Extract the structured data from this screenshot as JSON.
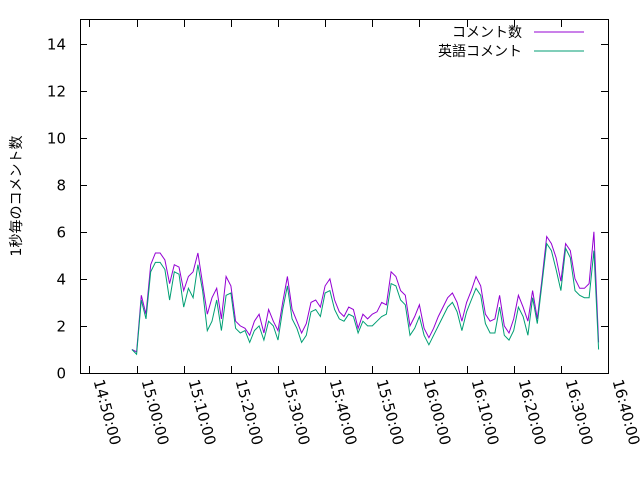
{
  "chart_data": {
    "type": "line",
    "title": "",
    "xlabel": "",
    "ylabel": "1秒毎のコメント数",
    "xlim": [
      "14:48:00",
      "16:40:00"
    ],
    "ylim": [
      0,
      15
    ],
    "grid": false,
    "legend_position": "top-right",
    "x_tick_labels": [
      "14:50:00",
      "15:00:00",
      "15:10:00",
      "15:20:00",
      "15:30:00",
      "15:40:00",
      "15:50:00",
      "16:00:00",
      "16:10:00",
      "16:20:00",
      "16:30:00",
      "16:40:00"
    ],
    "y_ticks": [
      0,
      2,
      4,
      6,
      8,
      10,
      12,
      14
    ],
    "series": [
      {
        "name": "コメント数",
        "color": "#9400d3",
        "points": [
          [
            "14:59:00",
            1.0
          ],
          [
            "15:00:00",
            0.9
          ],
          [
            "15:01:00",
            3.3
          ],
          [
            "15:02:00",
            2.5
          ],
          [
            "15:03:00",
            4.6
          ],
          [
            "15:04:00",
            5.1
          ],
          [
            "15:05:00",
            5.1
          ],
          [
            "15:06:00",
            4.8
          ],
          [
            "15:07:00",
            3.8
          ],
          [
            "15:08:00",
            4.6
          ],
          [
            "15:09:00",
            4.5
          ],
          [
            "15:10:00",
            3.5
          ],
          [
            "15:11:00",
            4.1
          ],
          [
            "15:12:00",
            4.3
          ],
          [
            "15:13:00",
            5.1
          ],
          [
            "15:14:00",
            3.8
          ],
          [
            "15:15:00",
            2.5
          ],
          [
            "15:16:00",
            3.2
          ],
          [
            "15:17:00",
            3.6
          ],
          [
            "15:18:00",
            2.3
          ],
          [
            "15:19:00",
            4.1
          ],
          [
            "15:20:00",
            3.7
          ],
          [
            "15:21:00",
            2.2
          ],
          [
            "15:22:00",
            2.0
          ],
          [
            "15:23:00",
            1.9
          ],
          [
            "15:24:00",
            1.6
          ],
          [
            "15:25:00",
            2.2
          ],
          [
            "15:26:00",
            2.5
          ],
          [
            "15:27:00",
            1.7
          ],
          [
            "15:28:00",
            2.7
          ],
          [
            "15:29:00",
            2.2
          ],
          [
            "15:30:00",
            1.8
          ],
          [
            "15:31:00",
            3.0
          ],
          [
            "15:32:00",
            4.1
          ],
          [
            "15:33:00",
            2.7
          ],
          [
            "15:34:00",
            2.2
          ],
          [
            "15:35:00",
            1.7
          ],
          [
            "15:36:00",
            2.1
          ],
          [
            "15:37:00",
            3.0
          ],
          [
            "15:38:00",
            3.1
          ],
          [
            "15:39:00",
            2.8
          ],
          [
            "15:40:00",
            3.7
          ],
          [
            "15:41:00",
            4.0
          ],
          [
            "15:42:00",
            3.1
          ],
          [
            "15:43:00",
            2.6
          ],
          [
            "15:44:00",
            2.4
          ],
          [
            "15:45:00",
            2.8
          ],
          [
            "15:46:00",
            2.7
          ],
          [
            "15:47:00",
            1.9
          ],
          [
            "15:48:00",
            2.5
          ],
          [
            "15:49:00",
            2.3
          ],
          [
            "15:50:00",
            2.5
          ],
          [
            "15:51:00",
            2.6
          ],
          [
            "15:52:00",
            3.0
          ],
          [
            "15:53:00",
            2.9
          ],
          [
            "15:54:00",
            4.3
          ],
          [
            "15:55:00",
            4.1
          ],
          [
            "15:56:00",
            3.5
          ],
          [
            "15:57:00",
            3.3
          ],
          [
            "15:58:00",
            2.0
          ],
          [
            "15:59:00",
            2.4
          ],
          [
            "16:00:00",
            2.9
          ],
          [
            "16:01:00",
            1.9
          ],
          [
            "16:02:00",
            1.5
          ],
          [
            "16:03:00",
            1.9
          ],
          [
            "16:04:00",
            2.4
          ],
          [
            "16:05:00",
            2.8
          ],
          [
            "16:06:00",
            3.2
          ],
          [
            "16:07:00",
            3.4
          ],
          [
            "16:08:00",
            3.0
          ],
          [
            "16:09:00",
            2.2
          ],
          [
            "16:10:00",
            3.0
          ],
          [
            "16:11:00",
            3.5
          ],
          [
            "16:12:00",
            4.1
          ],
          [
            "16:13:00",
            3.7
          ],
          [
            "16:14:00",
            2.5
          ],
          [
            "16:15:00",
            2.2
          ],
          [
            "16:16:00",
            2.3
          ],
          [
            "16:17:00",
            3.3
          ],
          [
            "16:18:00",
            2.0
          ],
          [
            "16:19:00",
            1.7
          ],
          [
            "16:20:00",
            2.3
          ],
          [
            "16:21:00",
            3.3
          ],
          [
            "16:22:00",
            2.8
          ],
          [
            "16:23:00",
            2.2
          ],
          [
            "16:24:00",
            3.5
          ],
          [
            "16:25:00",
            2.3
          ],
          [
            "16:26:00",
            4.0
          ],
          [
            "16:27:00",
            5.8
          ],
          [
            "16:28:00",
            5.5
          ],
          [
            "16:29:00",
            4.9
          ],
          [
            "16:30:00",
            3.9
          ],
          [
            "16:31:00",
            5.5
          ],
          [
            "16:32:00",
            5.2
          ],
          [
            "16:33:00",
            4.0
          ],
          [
            "16:34:00",
            3.6
          ],
          [
            "16:35:00",
            3.6
          ],
          [
            "16:36:00",
            3.8
          ],
          [
            "16:37:00",
            6.0
          ],
          [
            "16:38:00",
            1.3
          ]
        ]
      },
      {
        "name": "英語コメント",
        "color": "#009e73",
        "points": [
          [
            "14:59:00",
            1.0
          ],
          [
            "15:00:00",
            0.8
          ],
          [
            "15:01:00",
            3.1
          ],
          [
            "15:02:00",
            2.3
          ],
          [
            "15:03:00",
            4.3
          ],
          [
            "15:04:00",
            4.7
          ],
          [
            "15:05:00",
            4.7
          ],
          [
            "15:06:00",
            4.4
          ],
          [
            "15:07:00",
            3.1
          ],
          [
            "15:08:00",
            4.3
          ],
          [
            "15:09:00",
            4.2
          ],
          [
            "15:10:00",
            2.8
          ],
          [
            "15:11:00",
            3.6
          ],
          [
            "15:12:00",
            3.2
          ],
          [
            "15:13:00",
            4.6
          ],
          [
            "15:14:00",
            3.5
          ],
          [
            "15:15:00",
            1.8
          ],
          [
            "15:16:00",
            2.2
          ],
          [
            "15:17:00",
            3.1
          ],
          [
            "15:18:00",
            1.8
          ],
          [
            "15:19:00",
            3.3
          ],
          [
            "15:20:00",
            3.4
          ],
          [
            "15:21:00",
            1.9
          ],
          [
            "15:22:00",
            1.7
          ],
          [
            "15:23:00",
            1.8
          ],
          [
            "15:24:00",
            1.3
          ],
          [
            "15:25:00",
            1.8
          ],
          [
            "15:26:00",
            2.0
          ],
          [
            "15:27:00",
            1.4
          ],
          [
            "15:28:00",
            2.2
          ],
          [
            "15:29:00",
            2.0
          ],
          [
            "15:30:00",
            1.4
          ],
          [
            "15:31:00",
            2.7
          ],
          [
            "15:32:00",
            3.7
          ],
          [
            "15:33:00",
            2.3
          ],
          [
            "15:34:00",
            1.9
          ],
          [
            "15:35:00",
            1.3
          ],
          [
            "15:36:00",
            1.6
          ],
          [
            "15:37:00",
            2.6
          ],
          [
            "15:38:00",
            2.7
          ],
          [
            "15:39:00",
            2.4
          ],
          [
            "15:40:00",
            3.4
          ],
          [
            "15:41:00",
            3.5
          ],
          [
            "15:42:00",
            2.7
          ],
          [
            "15:43:00",
            2.3
          ],
          [
            "15:44:00",
            2.2
          ],
          [
            "15:45:00",
            2.5
          ],
          [
            "15:46:00",
            2.4
          ],
          [
            "15:47:00",
            1.7
          ],
          [
            "15:48:00",
            2.2
          ],
          [
            "15:49:00",
            2.0
          ],
          [
            "15:50:00",
            2.0
          ],
          [
            "15:51:00",
            2.2
          ],
          [
            "15:52:00",
            2.4
          ],
          [
            "15:53:00",
            2.5
          ],
          [
            "15:54:00",
            3.8
          ],
          [
            "15:55:00",
            3.7
          ],
          [
            "15:56:00",
            3.1
          ],
          [
            "15:57:00",
            2.9
          ],
          [
            "15:58:00",
            1.6
          ],
          [
            "15:59:00",
            1.9
          ],
          [
            "16:00:00",
            2.4
          ],
          [
            "16:01:00",
            1.6
          ],
          [
            "16:02:00",
            1.2
          ],
          [
            "16:03:00",
            1.6
          ],
          [
            "16:04:00",
            2.0
          ],
          [
            "16:05:00",
            2.4
          ],
          [
            "16:06:00",
            2.8
          ],
          [
            "16:07:00",
            3.0
          ],
          [
            "16:08:00",
            2.6
          ],
          [
            "16:09:00",
            1.8
          ],
          [
            "16:10:00",
            2.6
          ],
          [
            "16:11:00",
            3.1
          ],
          [
            "16:12:00",
            3.6
          ],
          [
            "16:13:00",
            3.3
          ],
          [
            "16:14:00",
            2.1
          ],
          [
            "16:15:00",
            1.7
          ],
          [
            "16:16:00",
            1.7
          ],
          [
            "16:17:00",
            2.8
          ],
          [
            "16:18:00",
            1.6
          ],
          [
            "16:19:00",
            1.4
          ],
          [
            "16:20:00",
            1.8
          ],
          [
            "16:21:00",
            2.8
          ],
          [
            "16:22:00",
            2.4
          ],
          [
            "16:23:00",
            1.6
          ],
          [
            "16:24:00",
            3.2
          ],
          [
            "16:25:00",
            2.1
          ],
          [
            "16:26:00",
            3.8
          ],
          [
            "16:27:00",
            5.5
          ],
          [
            "16:28:00",
            5.2
          ],
          [
            "16:29:00",
            4.4
          ],
          [
            "16:30:00",
            3.5
          ],
          [
            "16:31:00",
            5.3
          ],
          [
            "16:32:00",
            4.9
          ],
          [
            "16:33:00",
            3.5
          ],
          [
            "16:34:00",
            3.3
          ],
          [
            "16:35:00",
            3.2
          ],
          [
            "16:36:00",
            3.2
          ],
          [
            "16:37:00",
            5.2
          ],
          [
            "16:38:00",
            1.0
          ]
        ]
      }
    ]
  }
}
